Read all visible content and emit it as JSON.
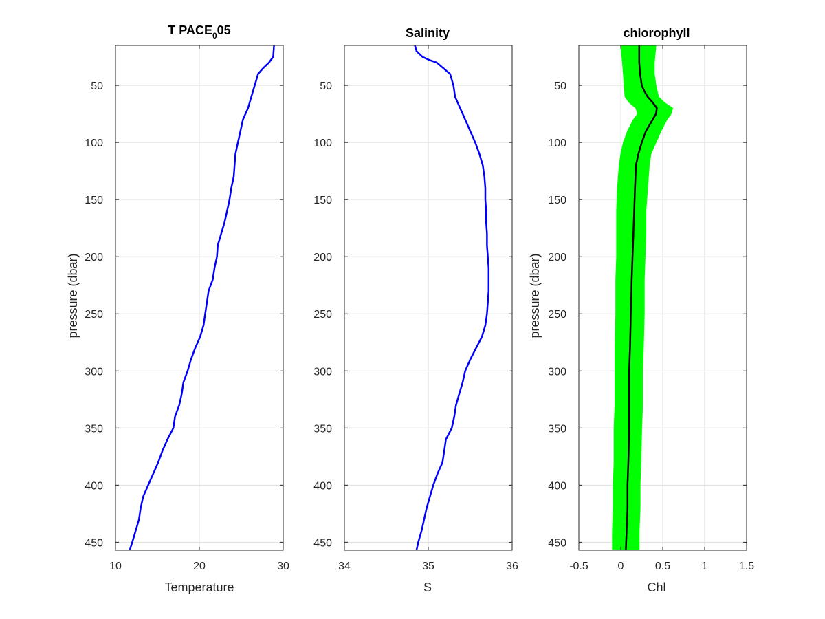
{
  "chart_data": [
    {
      "type": "line",
      "title": "T PACE",
      "title_subscript": "0",
      "title_suffix": "05",
      "xlabel": "Temperature",
      "ylabel": "pressure (dbar)",
      "xlim": [
        10,
        30
      ],
      "ylim": [
        15,
        457
      ],
      "y_reversed": true,
      "grid": true,
      "x_ticks": [
        10,
        20,
        30
      ],
      "y_ticks": [
        50,
        100,
        150,
        200,
        250,
        300,
        350,
        400,
        450
      ],
      "series": [
        {
          "color": "#0000ff",
          "style": "line",
          "y": [
            15,
            25,
            30,
            35,
            40,
            45,
            60,
            70,
            80,
            90,
            100,
            110,
            120,
            130,
            140,
            150,
            160,
            170,
            180,
            190,
            200,
            210,
            220,
            230,
            240,
            250,
            260,
            270,
            280,
            290,
            300,
            310,
            320,
            330,
            340,
            350,
            360,
            370,
            380,
            390,
            400,
            410,
            420,
            430,
            440,
            450,
            457
          ],
          "x": [
            28.9,
            28.8,
            28.3,
            27.6,
            27.0,
            26.8,
            26.2,
            25.8,
            25.2,
            24.9,
            24.6,
            24.3,
            24.2,
            24.1,
            23.8,
            23.6,
            23.3,
            23.0,
            22.6,
            22.2,
            22.1,
            21.8,
            21.6,
            21.1,
            20.9,
            20.7,
            20.5,
            20.1,
            19.5,
            19.0,
            18.6,
            18.1,
            17.9,
            17.6,
            17.1,
            16.9,
            16.2,
            15.6,
            15.1,
            14.5,
            13.9,
            13.3,
            13.0,
            12.8,
            12.4,
            12.0,
            11.7
          ]
        }
      ]
    },
    {
      "type": "line",
      "title": "Salinity",
      "xlabel": "S",
      "ylabel": "",
      "xlim": [
        34,
        36
      ],
      "ylim": [
        15,
        457
      ],
      "y_reversed": true,
      "grid": true,
      "x_ticks": [
        34,
        35,
        36
      ],
      "y_ticks": [
        50,
        100,
        150,
        200,
        250,
        300,
        350,
        400,
        450
      ],
      "series": [
        {
          "color": "#ff0000",
          "style": "line",
          "y": [
            15,
            20,
            25,
            28,
            30,
            35,
            40,
            45,
            50,
            60,
            70,
            80,
            90,
            100,
            110,
            120,
            130,
            140,
            150,
            160,
            170,
            180,
            190,
            200,
            210,
            220,
            230,
            240,
            250,
            260,
            270,
            280,
            290,
            300,
            310,
            320,
            330,
            340,
            350,
            360,
            370,
            380,
            390,
            400,
            410,
            420,
            430,
            440,
            450,
            457
          ],
          "x": [
            34.84,
            34.86,
            34.93,
            35.02,
            35.1,
            35.18,
            35.26,
            35.28,
            35.3,
            35.32,
            35.38,
            35.44,
            35.5,
            35.56,
            35.61,
            35.65,
            35.67,
            35.68,
            35.68,
            35.69,
            35.69,
            35.7,
            35.7,
            35.71,
            35.72,
            35.72,
            35.72,
            35.71,
            35.7,
            35.68,
            35.64,
            35.57,
            35.5,
            35.44,
            35.41,
            35.37,
            35.33,
            35.31,
            35.28,
            35.21,
            35.19,
            35.17,
            35.11,
            35.06,
            35.02,
            34.98,
            34.95,
            34.92,
            34.88,
            34.86
          ]
        },
        {
          "color": "#0000ff",
          "style": "line",
          "y": [
            15,
            20,
            25,
            28,
            30,
            35,
            40,
            45,
            50,
            60,
            70,
            80,
            90,
            100,
            110,
            120,
            130,
            140,
            150,
            160,
            170,
            180,
            190,
            200,
            210,
            220,
            230,
            240,
            250,
            260,
            270,
            280,
            290,
            300,
            310,
            320,
            330,
            340,
            350,
            360,
            370,
            380,
            390,
            400,
            410,
            420,
            430,
            440,
            450,
            457
          ],
          "x": [
            34.84,
            34.86,
            34.93,
            35.02,
            35.1,
            35.18,
            35.26,
            35.28,
            35.3,
            35.32,
            35.38,
            35.44,
            35.5,
            35.56,
            35.61,
            35.65,
            35.67,
            35.68,
            35.68,
            35.69,
            35.69,
            35.7,
            35.7,
            35.71,
            35.72,
            35.72,
            35.72,
            35.71,
            35.7,
            35.68,
            35.64,
            35.57,
            35.5,
            35.44,
            35.41,
            35.37,
            35.33,
            35.31,
            35.28,
            35.21,
            35.19,
            35.17,
            35.11,
            35.06,
            35.02,
            34.98,
            34.95,
            34.92,
            34.88,
            34.86
          ]
        }
      ]
    },
    {
      "type": "line",
      "title": "chlorophyll",
      "xlabel": "Chl",
      "ylabel": "pressure (dbar)",
      "xlim": [
        -0.5,
        1.5
      ],
      "ylim": [
        15,
        457
      ],
      "y_reversed": true,
      "grid": true,
      "x_ticks": [
        -0.5,
        0,
        0.5,
        1,
        1.5
      ],
      "y_ticks": [
        50,
        100,
        150,
        200,
        250,
        300,
        350,
        400,
        450
      ],
      "series": [
        {
          "color": "#00ff00",
          "style": "band",
          "y": [
            15,
            30,
            40,
            50,
            60,
            65,
            70,
            75,
            80,
            90,
            100,
            110,
            120,
            140,
            160,
            180,
            200,
            220,
            250,
            280,
            300,
            330,
            350,
            380,
            400,
            420,
            440,
            457
          ],
          "x_low": [
            0.0,
            0.02,
            0.03,
            0.04,
            0.05,
            0.1,
            0.18,
            0.2,
            0.15,
            0.08,
            0.03,
            0.0,
            -0.02,
            -0.04,
            -0.05,
            -0.05,
            -0.05,
            -0.06,
            -0.06,
            -0.07,
            -0.07,
            -0.07,
            -0.08,
            -0.08,
            -0.09,
            -0.09,
            -0.1,
            -0.1
          ],
          "x_high": [
            0.42,
            0.4,
            0.4,
            0.42,
            0.45,
            0.52,
            0.62,
            0.6,
            0.55,
            0.48,
            0.42,
            0.36,
            0.34,
            0.32,
            0.3,
            0.3,
            0.29,
            0.28,
            0.28,
            0.27,
            0.26,
            0.26,
            0.25,
            0.24,
            0.23,
            0.23,
            0.22,
            0.22
          ]
        },
        {
          "color": "#000000",
          "style": "line",
          "y": [
            15,
            30,
            40,
            50,
            55,
            60,
            65,
            70,
            75,
            80,
            90,
            100,
            110,
            120,
            140,
            160,
            180,
            200,
            220,
            250,
            280,
            300,
            330,
            350,
            380,
            400,
            420,
            440,
            457
          ],
          "x": [
            0.22,
            0.22,
            0.23,
            0.25,
            0.28,
            0.32,
            0.38,
            0.43,
            0.42,
            0.38,
            0.3,
            0.25,
            0.21,
            0.18,
            0.17,
            0.16,
            0.15,
            0.14,
            0.13,
            0.12,
            0.11,
            0.1,
            0.1,
            0.1,
            0.09,
            0.08,
            0.08,
            0.07,
            0.06
          ]
        }
      ]
    }
  ]
}
